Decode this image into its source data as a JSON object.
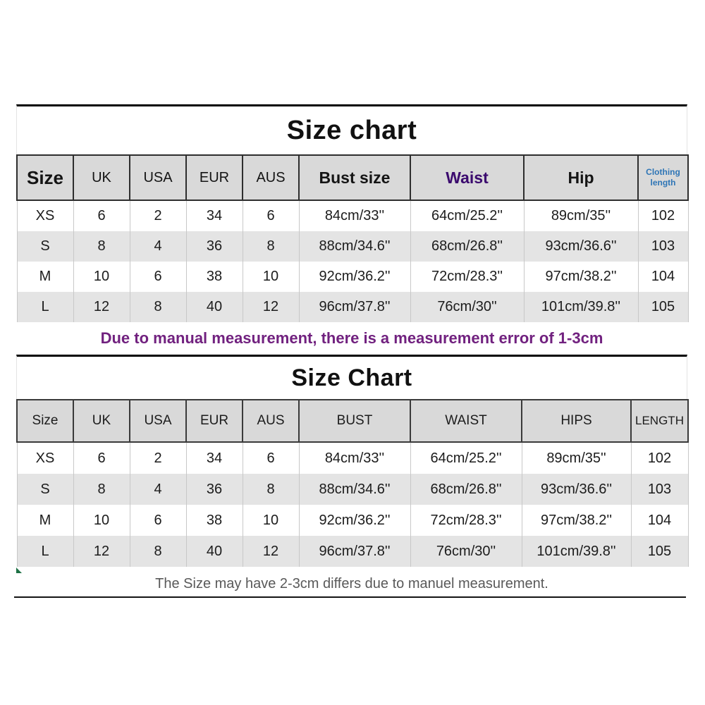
{
  "colors": {
    "header-bg": "#d9d9d9",
    "stripe-bg": "#e4e4e4",
    "grid-line": "#c8c8c8",
    "waist-purple": "#3b0a6e",
    "clothing-length-blue": "#2e75b6",
    "note1-purple": "#71217f",
    "note2-gray": "#595959",
    "marker-green": "#1e7145"
  },
  "chart_data": [
    {
      "type": "table",
      "title": "Size chart",
      "columns": [
        "Size",
        "UK",
        "USA",
        "EUR",
        "AUS",
        "Bust size",
        "Waist",
        "Hip",
        "Clothing length"
      ],
      "rows": [
        [
          "XS",
          "6",
          "2",
          "34",
          "6",
          "84cm/33''",
          "64cm/25.2''",
          "89cm/35''",
          "102"
        ],
        [
          "S",
          "8",
          "4",
          "36",
          "8",
          "88cm/34.6''",
          "68cm/26.8''",
          "93cm/36.6''",
          "103"
        ],
        [
          "M",
          "10",
          "6",
          "38",
          "10",
          "92cm/36.2''",
          "72cm/28.3''",
          "97cm/38.2''",
          "104"
        ],
        [
          "L",
          "12",
          "8",
          "40",
          "12",
          "96cm/37.8''",
          "76cm/30''",
          "101cm/39.8''",
          "105"
        ]
      ],
      "note": "Due to manual measurement, there is a measurement error of 1-3cm",
      "legend_position": "none",
      "grid": true
    },
    {
      "type": "table",
      "title": "Size Chart",
      "columns": [
        "Size",
        "UK",
        "USA",
        "EUR",
        "AUS",
        "BUST",
        "WAIST",
        "HIPS",
        "LENGTH"
      ],
      "rows": [
        [
          "XS",
          "6",
          "2",
          "34",
          "6",
          "84cm/33''",
          "64cm/25.2''",
          "89cm/35''",
          "102"
        ],
        [
          "S",
          "8",
          "4",
          "36",
          "8",
          "88cm/34.6''",
          "68cm/26.8''",
          "93cm/36.6''",
          "103"
        ],
        [
          "M",
          "10",
          "6",
          "38",
          "10",
          "92cm/36.2''",
          "72cm/28.3''",
          "97cm/38.2''",
          "104"
        ],
        [
          "L",
          "12",
          "8",
          "40",
          "12",
          "96cm/37.8''",
          "76cm/30''",
          "101cm/39.8''",
          "105"
        ]
      ],
      "note": "The Size may have 2-3cm differs due to manuel measurement.",
      "legend_position": "none",
      "grid": true
    }
  ]
}
